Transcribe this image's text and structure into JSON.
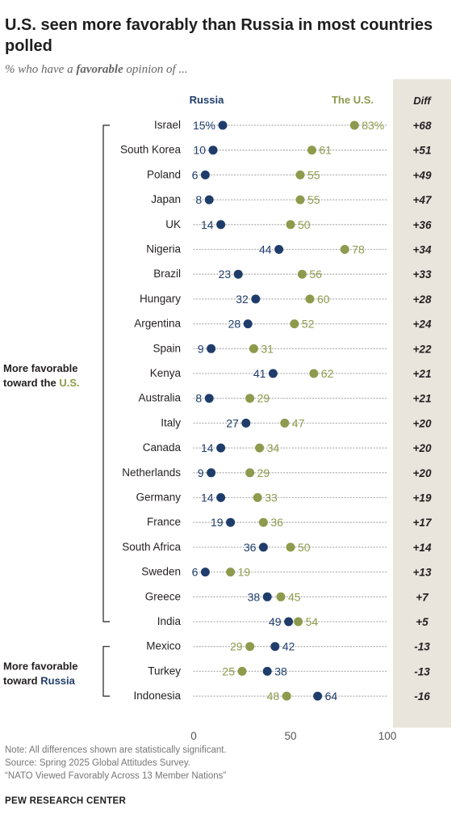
{
  "title": "U.S. seen more favorably than Russia in most countries polled",
  "subtitle": {
    "before": "% who have a ",
    "emph": "favorable",
    "after": " opinion of ..."
  },
  "colors": {
    "russia": "#1f3d6b",
    "us": "#8e9a4c",
    "diff_bg": "#e9e5dc",
    "dots": "#b3b3b3"
  },
  "chart_data": {
    "type": "dot",
    "series": [
      {
        "name": "Russia",
        "color": "#1f3d6b"
      },
      {
        "name": "The U.S.",
        "color": "#8e9a4c"
      }
    ],
    "diff_header": "Diff",
    "xlim": [
      0,
      100
    ],
    "x_ticks": [
      0,
      50,
      100
    ],
    "rows": [
      {
        "country": "Israel",
        "russia": 15,
        "us": 83,
        "russia_label": "15%",
        "us_label": "83%",
        "diff": "+68"
      },
      {
        "country": "South Korea",
        "russia": 10,
        "us": 61,
        "russia_label": "10",
        "us_label": "61",
        "diff": "+51"
      },
      {
        "country": "Poland",
        "russia": 6,
        "us": 55,
        "russia_label": "6",
        "us_label": "55",
        "diff": "+49"
      },
      {
        "country": "Japan",
        "russia": 8,
        "us": 55,
        "russia_label": "8",
        "us_label": "55",
        "diff": "+47"
      },
      {
        "country": "UK",
        "russia": 14,
        "us": 50,
        "russia_label": "14",
        "us_label": "50",
        "diff": "+36"
      },
      {
        "country": "Nigeria",
        "russia": 44,
        "us": 78,
        "russia_label": "44",
        "us_label": "78",
        "diff": "+34"
      },
      {
        "country": "Brazil",
        "russia": 23,
        "us": 56,
        "russia_label": "23",
        "us_label": "56",
        "diff": "+33"
      },
      {
        "country": "Hungary",
        "russia": 32,
        "us": 60,
        "russia_label": "32",
        "us_label": "60",
        "diff": "+28"
      },
      {
        "country": "Argentina",
        "russia": 28,
        "us": 52,
        "russia_label": "28",
        "us_label": "52",
        "diff": "+24"
      },
      {
        "country": "Spain",
        "russia": 9,
        "us": 31,
        "russia_label": "9",
        "us_label": "31",
        "diff": "+22"
      },
      {
        "country": "Kenya",
        "russia": 41,
        "us": 62,
        "russia_label": "41",
        "us_label": "62",
        "diff": "+21"
      },
      {
        "country": "Australia",
        "russia": 8,
        "us": 29,
        "russia_label": "8",
        "us_label": "29",
        "diff": "+21"
      },
      {
        "country": "Italy",
        "russia": 27,
        "us": 47,
        "russia_label": "27",
        "us_label": "47",
        "diff": "+20"
      },
      {
        "country": "Canada",
        "russia": 14,
        "us": 34,
        "russia_label": "14",
        "us_label": "34",
        "diff": "+20"
      },
      {
        "country": "Netherlands",
        "russia": 9,
        "us": 29,
        "russia_label": "9",
        "us_label": "29",
        "diff": "+20"
      },
      {
        "country": "Germany",
        "russia": 14,
        "us": 33,
        "russia_label": "14",
        "us_label": "33",
        "diff": "+19"
      },
      {
        "country": "France",
        "russia": 19,
        "us": 36,
        "russia_label": "19",
        "us_label": "36",
        "diff": "+17"
      },
      {
        "country": "South Africa",
        "russia": 36,
        "us": 50,
        "russia_label": "36",
        "us_label": "50",
        "diff": "+14"
      },
      {
        "country": "Sweden",
        "russia": 6,
        "us": 19,
        "russia_label": "6",
        "us_label": "19",
        "diff": "+13"
      },
      {
        "country": "Greece",
        "russia": 38,
        "us": 45,
        "russia_label": "38",
        "us_label": "45",
        "diff": "+7"
      },
      {
        "country": "India",
        "russia": 49,
        "us": 54,
        "russia_label": "49",
        "us_label": "54",
        "diff": "+5"
      },
      {
        "country": "Mexico",
        "russia": 42,
        "us": 29,
        "russia_label": "42",
        "us_label": "29",
        "diff": "-13"
      },
      {
        "country": "Turkey",
        "russia": 38,
        "us": 25,
        "russia_label": "38",
        "us_label": "25",
        "diff": "-13"
      },
      {
        "country": "Indonesia",
        "russia": 64,
        "us": 48,
        "russia_label": "64",
        "us_label": "48",
        "diff": "-16"
      }
    ],
    "groups": [
      {
        "label_plain": "More favorable",
        "label_prefix": "toward the ",
        "label_colored": "U.S.",
        "series": "us",
        "first_row": 0,
        "last_row": 20
      },
      {
        "label_plain": "More favorable",
        "label_prefix": "toward ",
        "label_colored": "Russia",
        "series": "russia",
        "first_row": 21,
        "last_row": 23
      }
    ]
  },
  "footer": {
    "note": "Note: All differences shown are statistically significant.",
    "source": "Source: Spring 2025 Global Attitudes Survey.",
    "report": "“NATO Viewed Favorably Across 13 Member Nations”",
    "brand": "PEW RESEARCH CENTER"
  }
}
